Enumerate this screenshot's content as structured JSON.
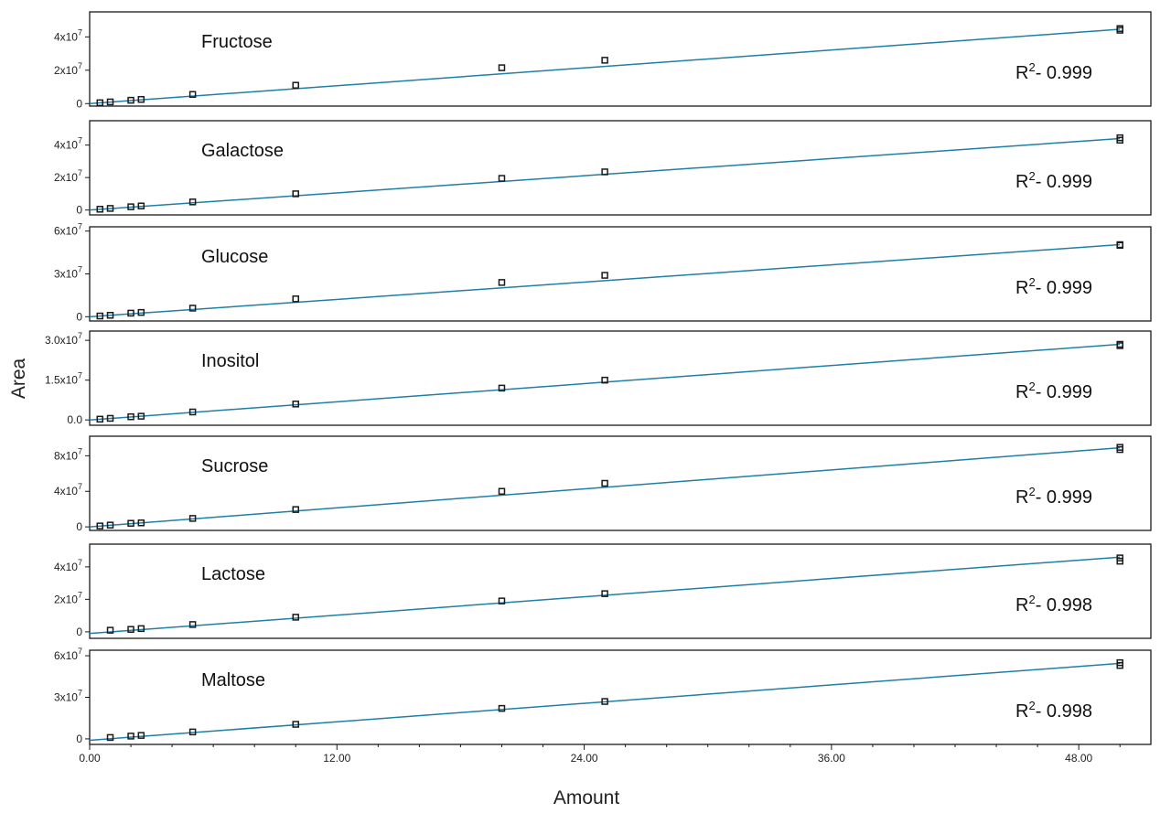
{
  "chart_data": {
    "type": "scatter",
    "xlabel": "Amount",
    "ylabel": "Area",
    "xlim": [
      0,
      51.5
    ],
    "x_ticks": [
      0,
      12,
      24,
      36,
      48
    ],
    "x_tick_labels": [
      "0.00",
      "12.00",
      "24.00",
      "36.00",
      "48.00"
    ],
    "x_minor_step": 2,
    "x": [
      0.5,
      1,
      2,
      2.5,
      5,
      10,
      20,
      25,
      50
    ],
    "line_color": "#1f7fa6",
    "marker_color": "#1a1a1a",
    "panels": [
      {
        "name": "Fructose",
        "r2_prefix": "R",
        "r2_sup": "2",
        "r2_value": "- 0.999",
        "ylim": [
          -1500000.0,
          55000000.0
        ],
        "y_ticks": [
          {
            "value": 0,
            "base": "0",
            "exp": ""
          },
          {
            "value": 20000000.0,
            "base": "2x10",
            "exp": "7"
          },
          {
            "value": 40000000.0,
            "base": "4x10",
            "exp": "7"
          }
        ],
        "line": [
          [
            0,
            0
          ],
          [
            50,
            44600000.0
          ]
        ],
        "points": [
          [
            0.5,
            [
              500000.0
            ]
          ],
          [
            1,
            [
              1000000.0
            ]
          ],
          [
            2,
            [
              2000000.0
            ]
          ],
          [
            2.5,
            [
              2500000.0
            ]
          ],
          [
            5,
            [
              5500000.0
            ]
          ],
          [
            10,
            [
              11000000.0
            ]
          ],
          [
            20,
            [
              21500000.0
            ]
          ],
          [
            25,
            [
              26000000.0
            ]
          ],
          [
            50,
            [
              44000000.0,
              45000000.0
            ]
          ]
        ]
      },
      {
        "name": "Galactose",
        "r2_prefix": "R",
        "r2_sup": "2",
        "r2_value": "- 0.999",
        "ylim": [
          -3000000.0,
          55000000.0
        ],
        "y_ticks": [
          {
            "value": 0,
            "base": "0",
            "exp": ""
          },
          {
            "value": 20000000.0,
            "base": "2x10",
            "exp": "7"
          },
          {
            "value": 40000000.0,
            "base": "4x10",
            "exp": "7"
          }
        ],
        "line": [
          [
            0,
            0
          ],
          [
            50,
            44000000.0
          ]
        ],
        "points": [
          [
            0.5,
            [
              500000.0
            ]
          ],
          [
            1,
            [
              1000000.0
            ]
          ],
          [
            2,
            [
              2000000.0
            ]
          ],
          [
            2.5,
            [
              2500000.0
            ]
          ],
          [
            5,
            [
              5000000.0
            ]
          ],
          [
            10,
            [
              10000000.0
            ]
          ],
          [
            20,
            [
              19500000.0
            ]
          ],
          [
            25,
            [
              23500000.0
            ]
          ],
          [
            50,
            [
              43000000.0,
              44500000.0
            ]
          ]
        ]
      },
      {
        "name": "Glucose",
        "r2_prefix": "R",
        "r2_sup": "2",
        "r2_value": "- 0.999",
        "ylim": [
          -3000000.0,
          63000000.0
        ],
        "y_ticks": [
          {
            "value": 0,
            "base": "0",
            "exp": ""
          },
          {
            "value": 30000000.0,
            "base": "3x10",
            "exp": "7"
          },
          {
            "value": 60000000.0,
            "base": "6x10",
            "exp": "7"
          }
        ],
        "line": [
          [
            0,
            0
          ],
          [
            50,
            50500000.0
          ]
        ],
        "points": [
          [
            0.5,
            [
              500000.0
            ]
          ],
          [
            1,
            [
              1000000.0
            ]
          ],
          [
            2,
            [
              2500000.0
            ]
          ],
          [
            2.5,
            [
              3000000.0
            ]
          ],
          [
            5,
            [
              6000000.0
            ]
          ],
          [
            10,
            [
              12500000.0
            ]
          ],
          [
            20,
            [
              24000000.0
            ]
          ],
          [
            25,
            [
              29000000.0
            ]
          ],
          [
            50,
            [
              50000000.0,
              50500000.0
            ]
          ]
        ]
      },
      {
        "name": "Inositol",
        "r2_prefix": "R",
        "r2_sup": "2",
        "r2_value": "- 0.999",
        "ylim": [
          -2000000.0,
          33500000.0
        ],
        "y_ticks": [
          {
            "value": 0,
            "base": "0.0",
            "exp": ""
          },
          {
            "value": 15000000.0,
            "base": "1.5x10",
            "exp": "7"
          },
          {
            "value": 30000000.0,
            "base": "3.0x10",
            "exp": "7"
          }
        ],
        "line": [
          [
            0,
            0
          ],
          [
            50,
            28500000.0
          ]
        ],
        "points": [
          [
            0.5,
            [
              300000.0
            ]
          ],
          [
            1,
            [
              600000.0
            ]
          ],
          [
            2,
            [
              1200000.0
            ]
          ],
          [
            2.5,
            [
              1400000.0
            ]
          ],
          [
            5,
            [
              3000000.0
            ]
          ],
          [
            10,
            [
              6000000.0
            ]
          ],
          [
            20,
            [
              12000000.0
            ]
          ],
          [
            25,
            [
              15000000.0
            ]
          ],
          [
            50,
            [
              28000000.0,
              28500000.0
            ]
          ]
        ]
      },
      {
        "name": "Sucrose",
        "r2_prefix": "R",
        "r2_sup": "2",
        "r2_value": "- 0.999",
        "ylim": [
          -4000000.0,
          102000000.0
        ],
        "y_ticks": [
          {
            "value": 0,
            "base": "0",
            "exp": ""
          },
          {
            "value": 40000000.0,
            "base": "4x10",
            "exp": "7"
          },
          {
            "value": 80000000.0,
            "base": "8x10",
            "exp": "7"
          }
        ],
        "line": [
          [
            0,
            0
          ],
          [
            50,
            89000000.0
          ]
        ],
        "points": [
          [
            0.5,
            [
              1000000.0
            ]
          ],
          [
            1,
            [
              2000000.0
            ]
          ],
          [
            2,
            [
              4000000.0
            ]
          ],
          [
            2.5,
            [
              4500000.0
            ]
          ],
          [
            5,
            [
              9500000.0
            ]
          ],
          [
            10,
            [
              19500000.0
            ]
          ],
          [
            20,
            [
              40000000.0
            ]
          ],
          [
            25,
            [
              49000000.0
            ]
          ],
          [
            50,
            [
              87000000.0,
              89500000.0
            ]
          ]
        ]
      },
      {
        "name": "Lactose",
        "r2_prefix": "R",
        "r2_sup": "2",
        "r2_value": "- 0.998",
        "ylim": [
          -4000000.0,
          54000000.0
        ],
        "y_ticks": [
          {
            "value": 0,
            "base": "0",
            "exp": ""
          },
          {
            "value": 20000000.0,
            "base": "2x10",
            "exp": "7"
          },
          {
            "value": 40000000.0,
            "base": "4x10",
            "exp": "7"
          }
        ],
        "line": [
          [
            0,
            -1000000.0
          ],
          [
            50,
            46000000.0
          ]
        ],
        "points": [
          [
            1,
            [
              1000000.0
            ]
          ],
          [
            2,
            [
              1500000.0
            ]
          ],
          [
            2.5,
            [
              2000000.0
            ]
          ],
          [
            5,
            [
              4500000.0
            ]
          ],
          [
            10,
            [
              9000000.0
            ]
          ],
          [
            20,
            [
              19000000.0
            ]
          ],
          [
            25,
            [
              23500000.0
            ]
          ],
          [
            50,
            [
              43500000.0,
              45500000.0
            ]
          ]
        ]
      },
      {
        "name": "Maltose",
        "r2_prefix": "R",
        "r2_sup": "2",
        "r2_value": "- 0.998",
        "ylim": [
          -4000000.0,
          64000000.0
        ],
        "y_ticks": [
          {
            "value": 0,
            "base": "0",
            "exp": ""
          },
          {
            "value": 30000000.0,
            "base": "3x10",
            "exp": "7"
          },
          {
            "value": 60000000.0,
            "base": "6x10",
            "exp": "7"
          }
        ],
        "line": [
          [
            0,
            -1000000.0
          ],
          [
            50,
            54500000.0
          ]
        ],
        "points": [
          [
            1,
            [
              1000000.0
            ]
          ],
          [
            2,
            [
              2000000.0
            ]
          ],
          [
            2.5,
            [
              2500000.0
            ]
          ],
          [
            5,
            [
              5000000.0
            ]
          ],
          [
            10,
            [
              10500000.0
            ]
          ],
          [
            20,
            [
              22000000.0
            ]
          ],
          [
            25,
            [
              27000000.0
            ]
          ],
          [
            50,
            [
              53000000.0,
              55000000.0
            ]
          ]
        ]
      }
    ]
  }
}
